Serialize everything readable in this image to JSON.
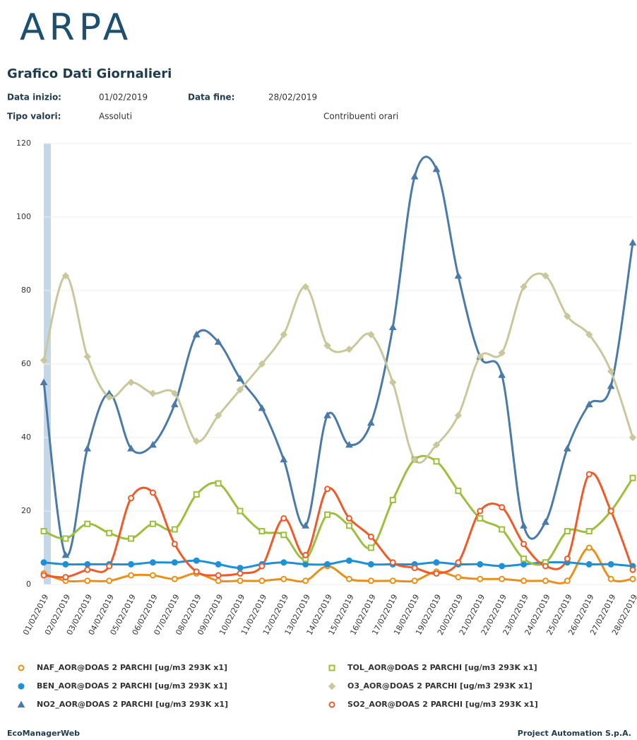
{
  "header": {
    "logo": "ARPA",
    "title": "Grafico Dati Giornalieri",
    "start_label": "Data inizio:",
    "start": "01/02/2019",
    "end_label": "Data fine:",
    "end": "28/02/2019",
    "type_label": "Tipo valori:",
    "type_value": "Assoluti",
    "contrib": "Contribuenti orari"
  },
  "chart_data": {
    "type": "line",
    "categories": [
      "01/02/2019",
      "02/02/2019",
      "03/02/2019",
      "04/02/2019",
      "05/02/2019",
      "06/02/2019",
      "07/02/2019",
      "08/02/2019",
      "09/02/2019",
      "10/02/2019",
      "11/02/2019",
      "12/02/2019",
      "13/02/2019",
      "14/02/2019",
      "15/02/2019",
      "16/02/2019",
      "17/02/2019",
      "18/02/2019",
      "19/02/2019",
      "20/02/2019",
      "21/02/2019",
      "22/02/2019",
      "23/02/2019",
      "24/02/2019",
      "25/02/2019",
      "26/02/2019",
      "27/02/2019",
      "28/02/2019"
    ],
    "ylim": [
      0,
      120
    ],
    "yticks": [
      0,
      20,
      40,
      60,
      80,
      100,
      120
    ],
    "series": [
      {
        "name": "NAF_AOR@DOAS 2 PARCHI [ug/m3 293K x1]",
        "color": "#e8901a",
        "marker": "open-circle",
        "values": [
          3,
          1,
          1,
          1,
          2.5,
          2.5,
          1.5,
          3,
          1,
          1,
          1,
          1.5,
          1,
          5,
          1.5,
          1,
          1,
          1,
          3.5,
          2,
          1.5,
          1.5,
          1,
          1,
          1,
          10,
          1.5,
          1.5
        ]
      },
      {
        "name": "BEN_AOR@DOAS 2 PARCHI [ug/m3 293K x1]",
        "color": "#1e90d6",
        "marker": "circle",
        "values": [
          6,
          5.5,
          5.5,
          5.5,
          5.5,
          6,
          6,
          6.5,
          5.5,
          4.5,
          5.5,
          6,
          5.5,
          5.5,
          6.5,
          5.5,
          5.5,
          5.5,
          6,
          5.5,
          5.5,
          5,
          5.5,
          6,
          6,
          5.5,
          5.5,
          5
        ]
      },
      {
        "name": "NO2_AOR@DOAS 2 PARCHI [ug/m3 293K x1]",
        "color": "#4a7aa8",
        "marker": "triangle",
        "values": [
          55,
          8,
          37,
          52,
          37,
          38,
          49,
          68,
          66,
          56,
          48,
          34,
          16,
          46,
          38,
          44,
          70,
          111,
          113,
          84,
          62,
          57,
          16,
          17,
          37,
          49,
          54,
          93
        ]
      },
      {
        "name": "TOL_AOR@DOAS 2 PARCHI [ug/m3 293K x1]",
        "color": "#9cbf3c",
        "marker": "open-square",
        "values": [
          14.5,
          12.5,
          16.5,
          14,
          12.5,
          16.5,
          15,
          24.5,
          27.5,
          20,
          14.5,
          13.5,
          7,
          19,
          16,
          10,
          23,
          34,
          33.5,
          25.5,
          18,
          15,
          7,
          6,
          14.5,
          14.5,
          20,
          29
        ]
      },
      {
        "name": "O3_AOR@DOAS 2 PARCHI [ug/m3 293K x1]",
        "color": "#c8c89c",
        "marker": "diamond",
        "values": [
          61,
          84,
          62,
          51,
          55,
          52,
          52,
          39,
          46,
          53,
          60,
          68,
          81,
          65,
          64,
          68,
          55,
          34,
          38,
          46,
          62,
          63,
          81,
          84,
          73,
          68,
          58,
          40
        ]
      },
      {
        "name": "SO2_AOR@DOAS 2 PARCHI [ug/m3 293K x1]",
        "color": "#f05a28",
        "marker": "open-circle",
        "values": [
          2.5,
          2,
          4,
          5,
          23.5,
          25,
          11,
          3.5,
          2.5,
          3,
          5,
          18,
          8,
          26,
          18,
          13,
          6,
          4.5,
          3,
          6,
          20,
          21,
          11,
          5,
          7,
          30,
          20,
          4
        ]
      }
    ]
  },
  "footer": {
    "left": "EcoManagerWeb",
    "right": "Project Automation S.p.A."
  }
}
